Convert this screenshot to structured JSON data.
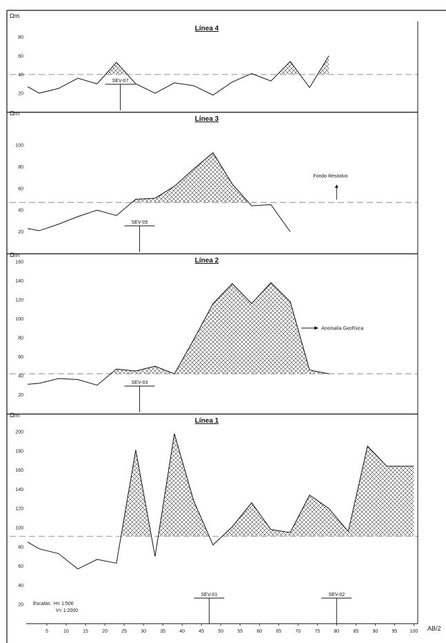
{
  "colors": {
    "line": "#111111",
    "threshold": "#b0b0b0",
    "hatch": "#444444",
    "frame": "#111111",
    "background": "#ffffff"
  },
  "x_axis": {
    "label": "AB/2",
    "ticks": [
      5,
      10,
      15,
      20,
      25,
      30,
      35,
      40,
      45,
      50,
      55,
      60,
      65,
      70,
      75,
      80,
      85,
      90,
      95,
      100
    ],
    "range": [
      0,
      101
    ]
  },
  "scales": {
    "label": "Escalas:",
    "horizontal": "H= 1:500",
    "vertical": "V= 1:2000"
  },
  "chart_data": [
    {
      "type": "line",
      "title": "Línea 4",
      "ylabel": "Ωm",
      "xlabel": "",
      "ylim": [
        0,
        96
      ],
      "yticks": [
        20,
        40,
        60,
        80
      ],
      "threshold": 40,
      "fill_above_threshold": "crosshatch",
      "series": [
        {
          "x": [
            0,
            3,
            8,
            13,
            18,
            23,
            28,
            33,
            38,
            43,
            48,
            53,
            58,
            63,
            68,
            73,
            78
          ],
          "values": [
            27,
            20,
            25,
            36,
            30,
            53,
            30,
            20,
            31,
            28,
            18,
            32,
            41,
            33,
            54,
            26,
            60
          ]
        }
      ],
      "annotations": [
        {
          "label": "SEV-07",
          "x": 24
        }
      ]
    },
    {
      "type": "line",
      "title": "Línea 3",
      "ylabel": "Ωm",
      "xlabel": "",
      "ylim": [
        0,
        130
      ],
      "yticks": [
        20,
        40,
        60,
        80,
        100
      ],
      "threshold": 47,
      "fill_above_threshold": "crosshatch",
      "series": [
        {
          "x": [
            0,
            3,
            8,
            13,
            18,
            23,
            28,
            33,
            38,
            43,
            48,
            53,
            58,
            63,
            68
          ],
          "values": [
            23,
            21,
            27,
            34,
            40,
            35,
            50,
            51,
            62,
            78,
            93,
            64,
            44,
            45,
            20
          ]
        }
      ],
      "annotations": [
        {
          "label": "SEV-05",
          "x": 29
        },
        {
          "label": "Fondo Resistivo",
          "x": 85
        }
      ]
    },
    {
      "type": "line",
      "title": "Línea 2",
      "ylabel": "Ωm",
      "xlabel": "",
      "ylim": [
        0,
        168
      ],
      "yticks": [
        20,
        40,
        60,
        80,
        100,
        120,
        140,
        160
      ],
      "threshold": 42,
      "fill_above_threshold": "crosshatch",
      "series": [
        {
          "x": [
            0,
            3,
            8,
            13,
            18,
            23,
            28,
            33,
            38,
            43,
            48,
            53,
            58,
            63,
            68,
            73,
            78
          ],
          "values": [
            31,
            32,
            37,
            36,
            30,
            47,
            45,
            50,
            42,
            78,
            116,
            137,
            116,
            138,
            118,
            46,
            42
          ]
        }
      ],
      "annotations": [
        {
          "label": "SEV-03",
          "x": 29
        },
        {
          "label": "Anomalía Geofísica",
          "x": 83
        }
      ]
    },
    {
      "type": "line",
      "title": "Línea 1",
      "ylabel": "Ωm",
      "xlabel": "AB/2",
      "ylim": [
        0,
        218
      ],
      "yticks": [
        20,
        40,
        60,
        80,
        100,
        120,
        140,
        160,
        180,
        200
      ],
      "threshold": 91,
      "fill_above_threshold": "crosshatch",
      "series": [
        {
          "x": [
            0,
            3,
            8,
            13,
            18,
            23,
            28,
            33,
            38,
            43,
            48,
            53,
            58,
            63,
            68,
            73,
            78,
            83,
            88,
            93,
            100
          ],
          "values": [
            85,
            78,
            73,
            57,
            67,
            63,
            181,
            70,
            198,
            128,
            82,
            101,
            126,
            98,
            95,
            134,
            120,
            96,
            185,
            164,
            164
          ]
        }
      ],
      "annotations": [
        {
          "label": "SEV-01",
          "x": 47
        },
        {
          "label": "SEV-02",
          "x": 80
        }
      ]
    }
  ]
}
